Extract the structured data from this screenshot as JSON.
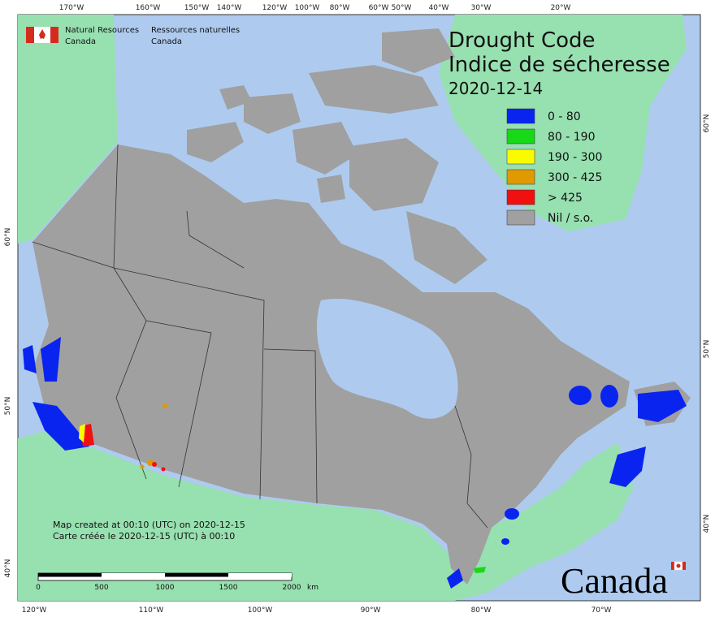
{
  "agency": {
    "en": [
      "Natural Resources",
      "Canada"
    ],
    "fr": [
      "Ressources naturelles",
      "Canada"
    ]
  },
  "title": [
    "Drought Code",
    "Indice de sécheresse"
  ],
  "date": "2020-12-14",
  "legend": [
    {
      "label": "0 - 80",
      "color": "#0a24f0"
    },
    {
      "label": "80 - 190",
      "color": "#18d818"
    },
    {
      "label": "190 - 300",
      "color": "#fafa00"
    },
    {
      "label": "300 - 425",
      "color": "#e09a00"
    },
    {
      "label": "> 425",
      "color": "#f01010"
    },
    {
      "label": "Nil / s.o.",
      "color": "#a0a0a0"
    }
  ],
  "top_ticks": [
    "170°W",
    "160°W",
    "150°W",
    "140°W",
    "120°W",
    "100°W",
    "80°W",
    "60°W",
    "50°W",
    "40°W",
    "30°W",
    "20°W"
  ],
  "bottom_ticks": [
    "120°W",
    "110°W",
    "100°W",
    "90°W",
    "80°W",
    "70°W"
  ],
  "left_ticks": [
    "60°N",
    "50°N",
    "40°N"
  ],
  "right_ticks": [
    "60°N",
    "50°N",
    "40°N"
  ],
  "notes": [
    "Map created at 00:10 (UTC) on 2020-12-15",
    "Carte créée le 2020-12-15 (UTC) à 00:10"
  ],
  "scale": {
    "labels": [
      "0",
      "500",
      "1000",
      "1500",
      "2000"
    ],
    "unit": "km"
  },
  "wordmark": "Canada"
}
